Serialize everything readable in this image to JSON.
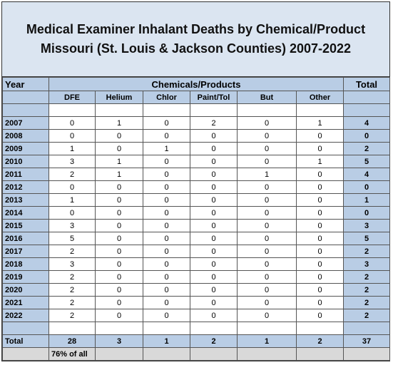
{
  "title": [
    "Medical Examiner Inhalant Deaths by Chemical/Product",
    "Missouri (St. Louis & Jackson Counties) 2007-2022"
  ],
  "header": {
    "year": "Year",
    "group": "Chemicals/Products",
    "total": "Total"
  },
  "columns": [
    "DFE",
    "Helium",
    "Chlor",
    "Paint/Tol",
    "But",
    "Other"
  ],
  "rows": [
    {
      "year": "2007",
      "values": [
        "0",
        "1",
        "0",
        "2",
        "0",
        "1"
      ],
      "total": "4"
    },
    {
      "year": "2008",
      "values": [
        "0",
        "0",
        "0",
        "0",
        "0",
        "0"
      ],
      "total": "0"
    },
    {
      "year": "2009",
      "values": [
        "1",
        "0",
        "1",
        "0",
        "0",
        "0"
      ],
      "total": "2"
    },
    {
      "year": "2010",
      "values": [
        "3",
        "1",
        "0",
        "0",
        "0",
        "1"
      ],
      "total": "5"
    },
    {
      "year": "2011",
      "values": [
        "2",
        "1",
        "0",
        "0",
        "1",
        "0"
      ],
      "total": "4"
    },
    {
      "year": "2012",
      "values": [
        "0",
        "0",
        "0",
        "0",
        "0",
        "0"
      ],
      "total": "0"
    },
    {
      "year": "2013",
      "values": [
        "1",
        "0",
        "0",
        "0",
        "0",
        "0"
      ],
      "total": "1"
    },
    {
      "year": "2014",
      "values": [
        "0",
        "0",
        "0",
        "0",
        "0",
        "0"
      ],
      "total": "0"
    },
    {
      "year": "2015",
      "values": [
        "3",
        "0",
        "0",
        "0",
        "0",
        "0"
      ],
      "total": "3"
    },
    {
      "year": "2016",
      "values": [
        "5",
        "0",
        "0",
        "0",
        "0",
        "0"
      ],
      "total": "5"
    },
    {
      "year": "2017",
      "values": [
        "2",
        "0",
        "0",
        "0",
        "0",
        "0"
      ],
      "total": "2"
    },
    {
      "year": "2018",
      "values": [
        "3",
        "0",
        "0",
        "0",
        "0",
        "0"
      ],
      "total": "3"
    },
    {
      "year": "2019",
      "values": [
        "2",
        "0",
        "0",
        "0",
        "0",
        "0"
      ],
      "total": "2"
    },
    {
      "year": "2020",
      "values": [
        "2",
        "0",
        "0",
        "0",
        "0",
        "0"
      ],
      "total": "2"
    },
    {
      "year": "2021",
      "values": [
        "2",
        "0",
        "0",
        "0",
        "0",
        "0"
      ],
      "total": "2"
    },
    {
      "year": "2022",
      "values": [
        "2",
        "0",
        "0",
        "0",
        "0",
        "0"
      ],
      "total": "2"
    }
  ],
  "totals": {
    "label": "Total",
    "values": [
      "28",
      "3",
      "1",
      "2",
      "1",
      "2"
    ],
    "total": "37"
  },
  "note": "76% of all"
}
